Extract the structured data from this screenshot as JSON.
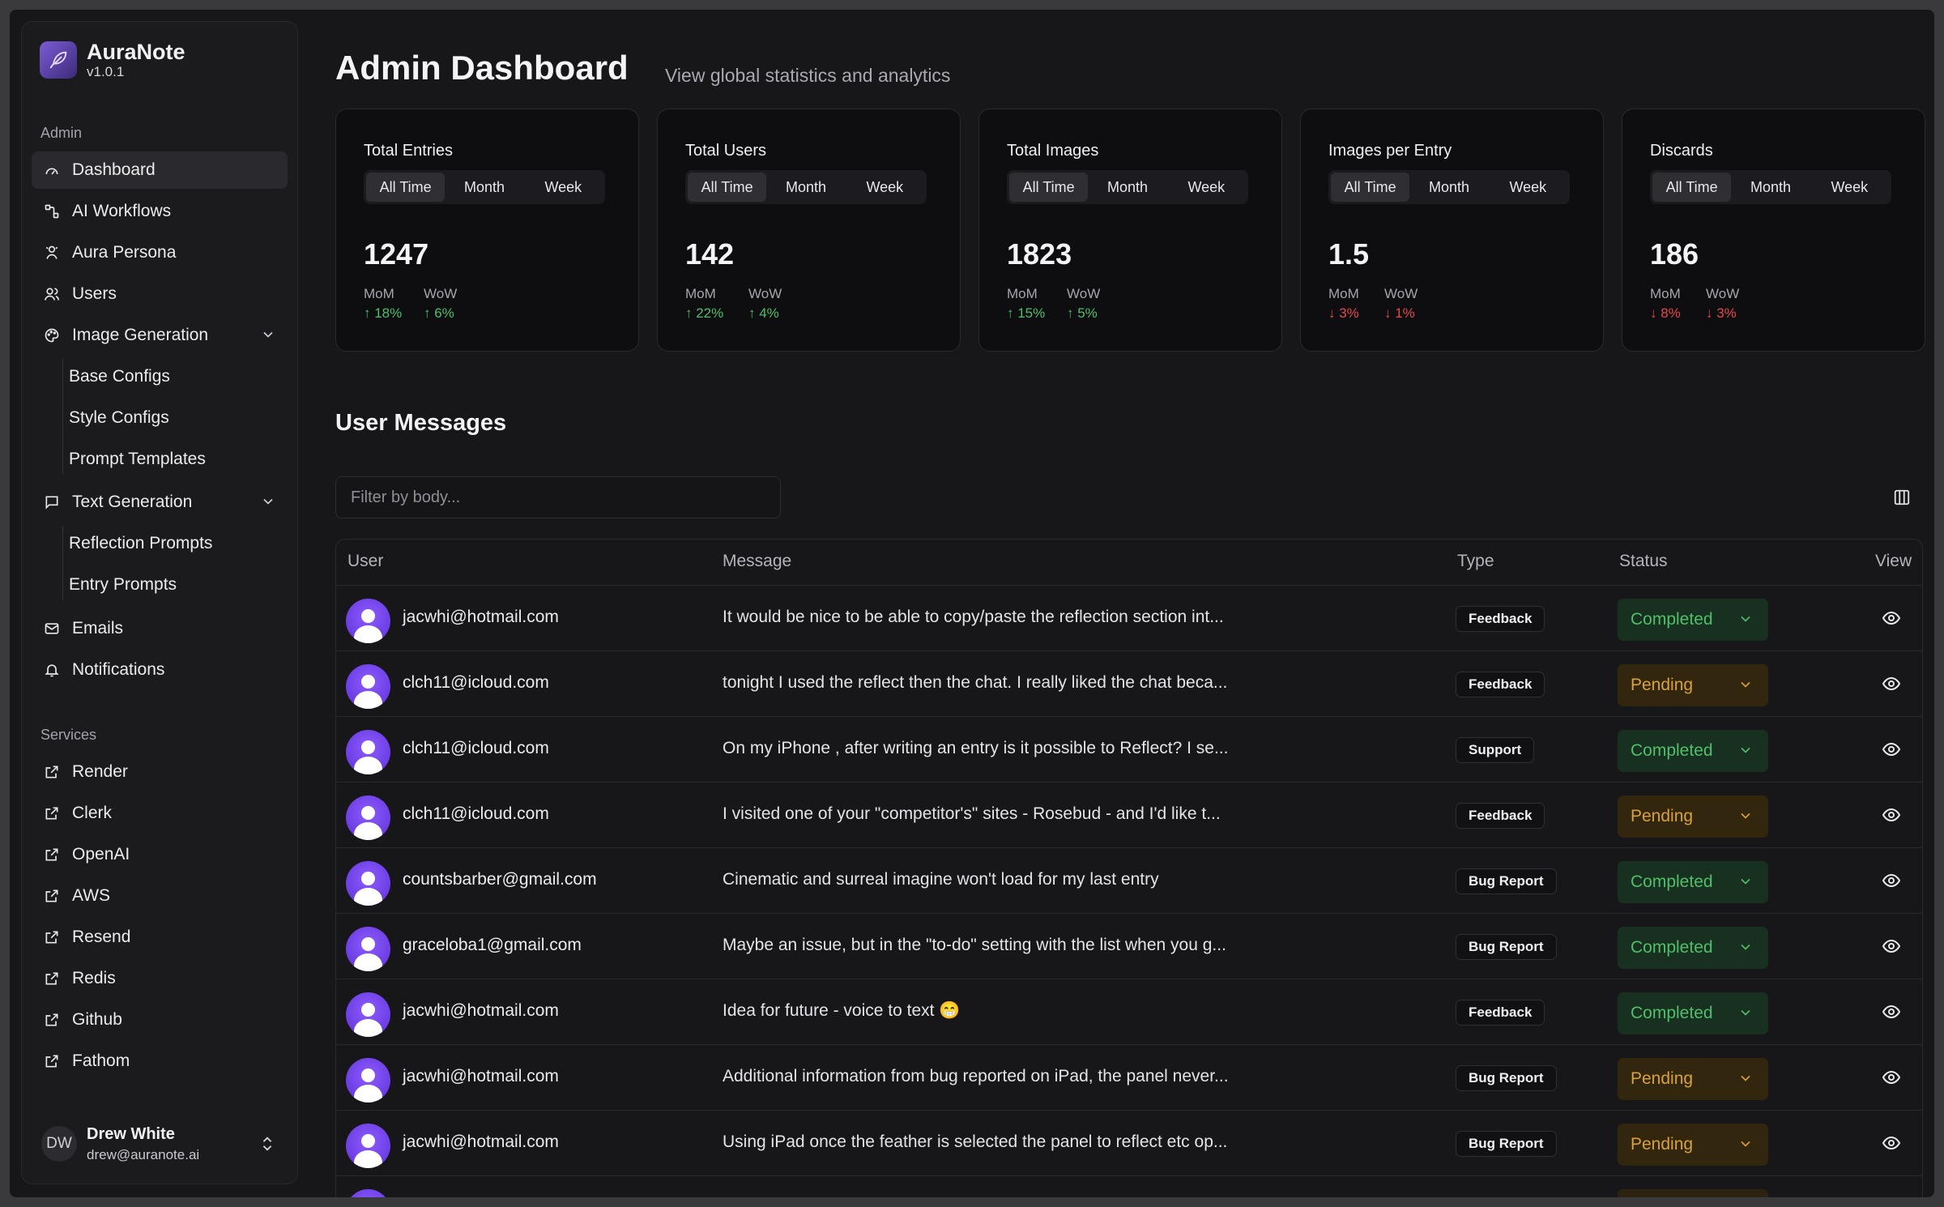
{
  "app": {
    "name": "AuraNote",
    "version": "v1.0.1"
  },
  "sidebar": {
    "admin_label": "Admin",
    "items": [
      {
        "label": "Dashboard",
        "icon": "gauge-icon"
      },
      {
        "label": "AI Workflows",
        "icon": "workflow-icon"
      },
      {
        "label": "Aura Persona",
        "icon": "persona-icon"
      },
      {
        "label": "Users",
        "icon": "users-icon"
      },
      {
        "label": "Image Generation",
        "icon": "palette-icon"
      },
      {
        "label": "Text Generation",
        "icon": "message-icon"
      },
      {
        "label": "Emails",
        "icon": "mail-icon"
      },
      {
        "label": "Notifications",
        "icon": "bell-icon"
      }
    ],
    "image_sub": [
      "Base Configs",
      "Style Configs",
      "Prompt Templates"
    ],
    "text_sub": [
      "Reflection Prompts",
      "Entry Prompts"
    ],
    "services_label": "Services",
    "services": [
      "Render",
      "Clerk",
      "OpenAI",
      "AWS",
      "Resend",
      "Redis",
      "Github",
      "Fathom"
    ],
    "user": {
      "initials": "DW",
      "name": "Drew White",
      "email": "drew@auranote.ai"
    }
  },
  "header": {
    "title": "Admin Dashboard",
    "subtitle": "View global statistics and analytics"
  },
  "range_options": [
    "All Time",
    "Month",
    "Week"
  ],
  "stats": [
    {
      "title": "Total Entries",
      "value": "1247",
      "mom_label": "MoM",
      "mom": "↑ 18%",
      "mom_dir": "up",
      "wow_label": "WoW",
      "wow": "↑ 6%",
      "wow_dir": "up"
    },
    {
      "title": "Total Users",
      "value": "142",
      "mom_label": "MoM",
      "mom": "↑ 22%",
      "mom_dir": "up",
      "wow_label": "WoW",
      "wow": "↑ 4%",
      "wow_dir": "up"
    },
    {
      "title": "Total Images",
      "value": "1823",
      "mom_label": "MoM",
      "mom": "↑ 15%",
      "mom_dir": "up",
      "wow_label": "WoW",
      "wow": "↑ 5%",
      "wow_dir": "up"
    },
    {
      "title": "Images per Entry",
      "value": "1.5",
      "mom_label": "MoM",
      "mom": "↓ 3%",
      "mom_dir": "down",
      "wow_label": "WoW",
      "wow": "↓ 1%",
      "wow_dir": "down"
    },
    {
      "title": "Discards",
      "value": "186",
      "mom_label": "MoM",
      "mom": "↓ 8%",
      "mom_dir": "down",
      "wow_label": "WoW",
      "wow": "↓ 3%",
      "wow_dir": "down"
    }
  ],
  "messages": {
    "title": "User Messages",
    "filter_placeholder": "Filter by body...",
    "columns": [
      "User",
      "Message",
      "Type",
      "Status",
      "View"
    ],
    "rows": [
      {
        "user": "jacwhi@hotmail.com",
        "message": "It would be nice to be able to copy/paste the reflection section int...",
        "type": "Feedback",
        "status": "Completed"
      },
      {
        "user": "clch11@icloud.com",
        "message": "tonight I used the reflect then the chat. I really liked the chat beca...",
        "type": "Feedback",
        "status": "Pending"
      },
      {
        "user": "clch11@icloud.com",
        "message": "On my iPhone , after writing an entry is it possible to Reflect? I se...",
        "type": "Support",
        "status": "Completed"
      },
      {
        "user": "clch11@icloud.com",
        "message": "I visited one of your \"competitor's\" sites - Rosebud - and I'd like t...",
        "type": "Feedback",
        "status": "Pending"
      },
      {
        "user": "countsbarber@gmail.com",
        "message": "Cinematic and surreal imagine won't load for my last entry",
        "type": "Bug Report",
        "status": "Completed"
      },
      {
        "user": "graceloba1@gmail.com",
        "message": "Maybe an issue, but in the \"to-do\" setting with the list when you g...",
        "type": "Bug Report",
        "status": "Completed"
      },
      {
        "user": "jacwhi@hotmail.com",
        "message": "Idea for future - voice to text 😁",
        "type": "Feedback",
        "status": "Completed"
      },
      {
        "user": "jacwhi@hotmail.com",
        "message": "Additional information from bug reported on iPad, the panel never...",
        "type": "Bug Report",
        "status": "Pending"
      },
      {
        "user": "jacwhi@hotmail.com",
        "message": "Using iPad once the feather is selected the panel to reflect etc op...",
        "type": "Bug Report",
        "status": "Pending"
      }
    ]
  },
  "colors": {
    "up": "#4fbf6a",
    "down": "#e5484d",
    "completed_bg": "#18301f",
    "pending_bg": "#33260f",
    "accent": "#7c5cd6"
  }
}
